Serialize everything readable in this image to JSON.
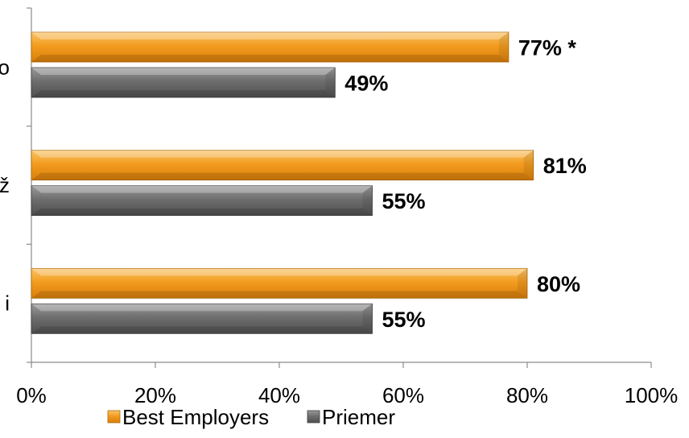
{
  "chart_data": {
    "type": "bar",
    "orientation": "horizontal",
    "categories": [
      "o",
      "ž",
      "i"
    ],
    "series": [
      {
        "name": "Best Employers",
        "values": [
          77,
          81,
          80
        ],
        "labels": [
          "77% *",
          "81%",
          "80%"
        ],
        "color": "#F39C1F"
      },
      {
        "name": "Priemer",
        "values": [
          49,
          55,
          55
        ],
        "labels": [
          "49%",
          "55%",
          "55%"
        ],
        "color": "#6F6F6F"
      }
    ],
    "x_ticks": [
      "0%",
      "20%",
      "40%",
      "60%",
      "80%",
      "100%"
    ],
    "xlim": [
      0,
      100
    ],
    "grid": false,
    "legend_position": "bottom",
    "title": "",
    "xlabel": "",
    "ylabel": ""
  }
}
